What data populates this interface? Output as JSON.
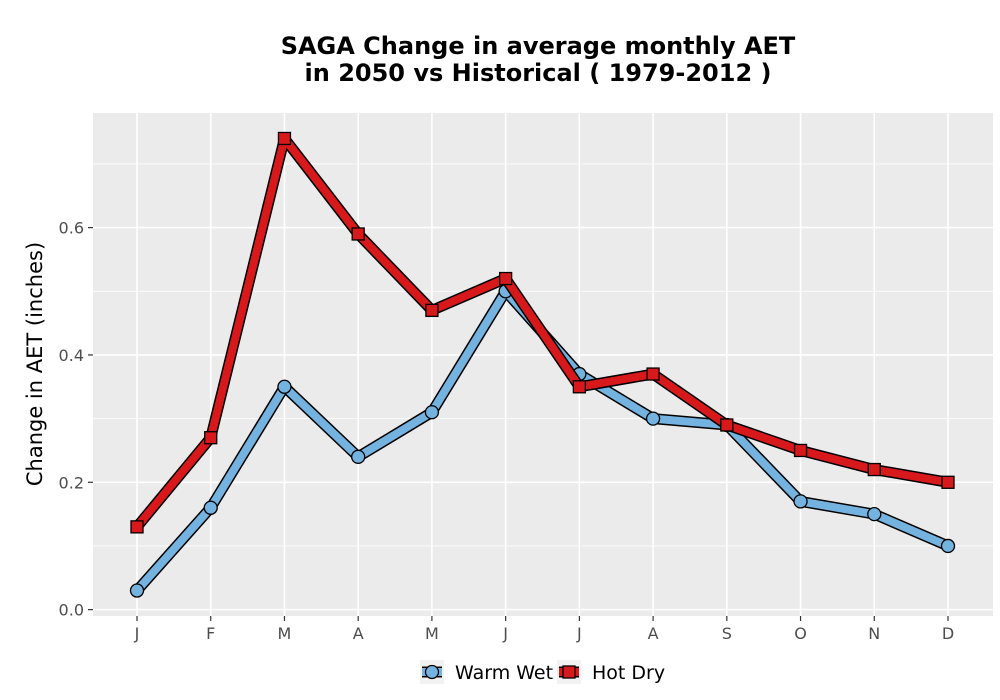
{
  "chart_data": {
    "type": "line",
    "title_line1": "SAGA  Change in average monthly AET",
    "title_line2": "in 2050 vs Historical ( 1979-2012 )",
    "xlabel": "",
    "ylabel": "Change in AET (inches)",
    "categories": [
      "J",
      "F",
      "M",
      "A",
      "M",
      "J",
      "J",
      "A",
      "S",
      "O",
      "N",
      "D"
    ],
    "y_ticks": [
      "0.0",
      "0.2",
      "0.4",
      "0.6"
    ],
    "ylim": [
      -0.01,
      0.78
    ],
    "grid": true,
    "legend_position": "bottom",
    "series": [
      {
        "name": "Warm Wet",
        "marker": "circle",
        "color": "#74b3e0",
        "values": [
          0.03,
          0.16,
          0.35,
          0.24,
          0.31,
          0.5,
          0.37,
          0.3,
          0.29,
          0.17,
          0.15,
          0.1
        ]
      },
      {
        "name": "Hot Dry",
        "marker": "square",
        "color": "#d7191c",
        "values": [
          0.13,
          0.27,
          0.74,
          0.59,
          0.47,
          0.52,
          0.35,
          0.37,
          0.29,
          0.25,
          0.22,
          0.2
        ]
      }
    ],
    "colors": {
      "panel": "#ebebeb",
      "grid": "#ffffff",
      "outline": "#000000"
    }
  }
}
